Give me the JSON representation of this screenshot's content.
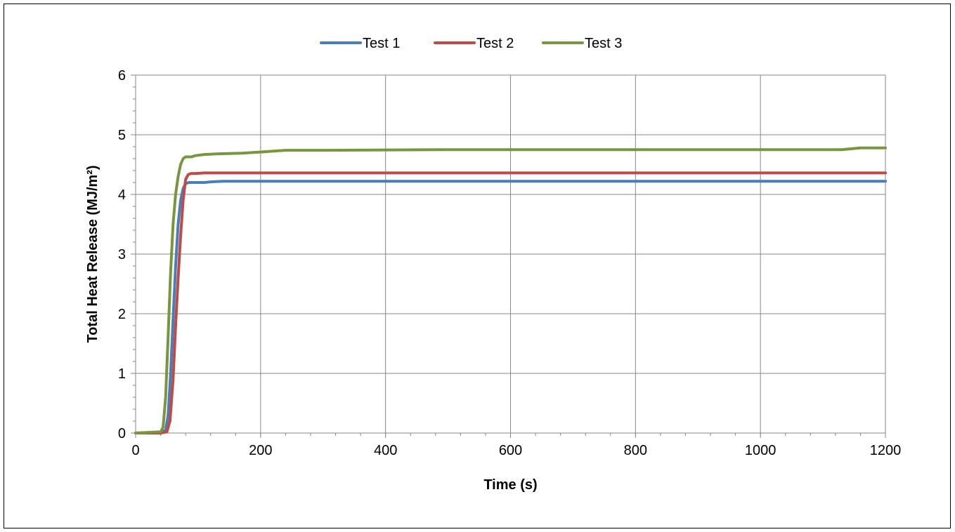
{
  "chart_data": {
    "type": "line",
    "title": "",
    "xlabel": "Time (s)",
    "ylabel": "Total Heat Release (MJ/m²)",
    "xlim": [
      0,
      1200
    ],
    "ylim": [
      0,
      6
    ],
    "xticks": [
      0,
      200,
      400,
      600,
      800,
      1000,
      1200
    ],
    "yticks": [
      0,
      1,
      2,
      3,
      4,
      5,
      6
    ],
    "xtick_labels": [
      "0",
      "200",
      "400",
      "600",
      "800",
      "1000",
      "1200"
    ],
    "ytick_labels": [
      "0",
      "1",
      "2",
      "3",
      "4",
      "5",
      "6"
    ],
    "grid": true,
    "legend_position": "top-center",
    "series": [
      {
        "name": "Test 1",
        "color": "#4a7ebb",
        "x": [
          0,
          40,
          48,
          52,
          56,
          60,
          64,
          68,
          72,
          76,
          80,
          85,
          90,
          100,
          110,
          120,
          140,
          200,
          400,
          600,
          800,
          1000,
          1200
        ],
        "y": [
          0,
          0.01,
          0.05,
          0.3,
          1.0,
          1.9,
          2.8,
          3.5,
          3.9,
          4.1,
          4.18,
          4.2,
          4.2,
          4.2,
          4.2,
          4.21,
          4.22,
          4.22,
          4.22,
          4.22,
          4.22,
          4.22,
          4.22
        ]
      },
      {
        "name": "Test 2",
        "color": "#be4b48",
        "x": [
          0,
          40,
          50,
          55,
          60,
          64,
          68,
          72,
          76,
          80,
          84,
          88,
          95,
          110,
          200,
          400,
          600,
          800,
          1000,
          1200
        ],
        "y": [
          0,
          0,
          0.02,
          0.2,
          0.9,
          1.8,
          2.6,
          3.3,
          3.9,
          4.25,
          4.33,
          4.35,
          4.35,
          4.36,
          4.36,
          4.36,
          4.36,
          4.36,
          4.36,
          4.36
        ]
      },
      {
        "name": "Test 3",
        "color": "#77963e",
        "x": [
          0,
          40,
          44,
          48,
          52,
          56,
          60,
          64,
          68,
          72,
          76,
          80,
          85,
          90,
          95,
          110,
          130,
          170,
          200,
          240,
          300,
          490,
          1000,
          1130,
          1160,
          1200
        ],
        "y": [
          0,
          0.02,
          0.1,
          0.6,
          1.6,
          2.7,
          3.5,
          4.0,
          4.3,
          4.5,
          4.6,
          4.63,
          4.63,
          4.63,
          4.65,
          4.67,
          4.68,
          4.69,
          4.71,
          4.74,
          4.74,
          4.75,
          4.75,
          4.75,
          4.78,
          4.78
        ]
      }
    ]
  }
}
